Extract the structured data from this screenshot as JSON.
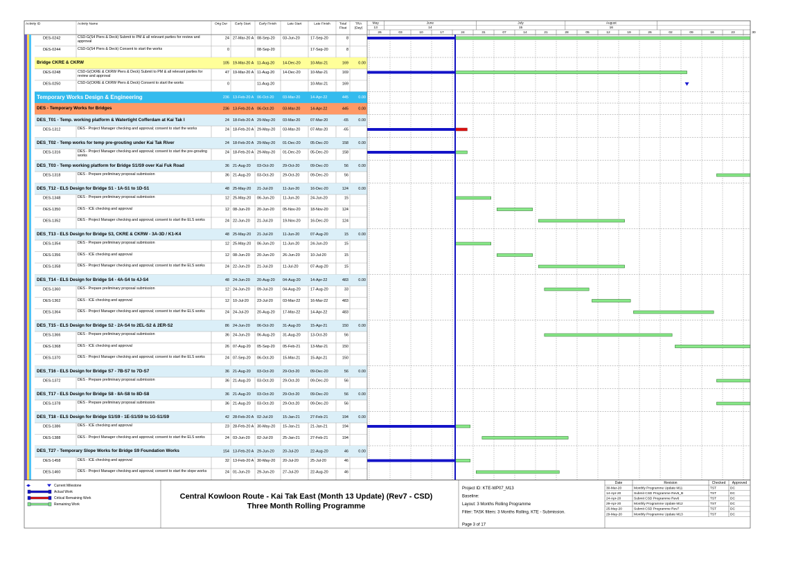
{
  "table": {
    "headers": {
      "id": "Activity ID",
      "name": "Activity Name",
      "dur": "Orig Dur",
      "es": "Early Start",
      "ef": "Early Finish",
      "ls": "Late Start",
      "lf": "Late Finish",
      "tf": [
        "Total",
        "Float"
      ],
      "tra": [
        "TRA",
        "(Day)"
      ]
    },
    "timeline": {
      "months": [
        "May",
        "June",
        "July",
        "August"
      ],
      "numbers": [
        "13",
        "14",
        "15",
        "16"
      ],
      "weeks": [
        "26",
        "03",
        "10",
        "17",
        "24",
        "31",
        "07",
        "14",
        "21",
        "28",
        "05",
        "12",
        "19",
        "26",
        "02",
        "09",
        "16",
        "23",
        "30"
      ]
    },
    "rows": [
      {
        "id": "DES-0242",
        "name": "CSD-G(S4 Piers & Deck) Submit to PM & all relevant parties for review and approval",
        "dur": 24,
        "es": "27-Mar-20 A",
        "ef": "08-Sep-20",
        "ls": "03-Jun-20",
        "lf": "17-Sep-20",
        "tf": 8
      },
      {
        "id": "DES-0244",
        "name": "CSD-G(S4 Piers & Deck) Consent to start the works",
        "dur": 0,
        "ef": "08-Sep-20",
        "lf": "17-Sep-20",
        "tf": 8
      },
      {
        "name": "Bridge CKRE & CKRW",
        "color": "#ffff99",
        "dur": 105,
        "es": "19-Mar-20 A",
        "ef": "11-Aug-20",
        "ls": "14-Dec-20",
        "lf": "10-Mar-21",
        "tf": 169,
        "tra": "0.00"
      },
      {
        "id": "DES-0248",
        "name": "CSD-G(CKRE & CKRW Piers & Deck) Submit to PM & all relevant parties for review and approval",
        "dur": 47,
        "es": "19-Mar-20 A",
        "ef": "11-Aug-20",
        "ls": "14-Dec-20",
        "lf": "10-Mar-21",
        "tf": 169
      },
      {
        "id": "DES-0250",
        "name": "CSD-G(CKRE & CKRW Piers & Deck) Consent to start the works",
        "dur": 0,
        "ef": "11-Aug-20",
        "lf": "10-Mar-21",
        "tf": 169
      },
      {
        "name": "Temporary Works Design & Engineering",
        "color": "#33bbee",
        "dur": 236,
        "es": "13-Feb-20 A",
        "ef": "06-Oct-20",
        "ls": "03-Mar-20",
        "lf": "14-Apr-22",
        "tf": 445,
        "tra": "0.00"
      },
      {
        "name": "DES - Temporary Works for Bridges",
        "color": "#ff9966",
        "dur": 236,
        "es": "13-Feb-20 A",
        "ef": "06-Oct-20",
        "ls": "03-Mar-20",
        "lf": "14-Apr-22",
        "tf": 445,
        "tra": "0.00"
      },
      {
        "name": "DES_T01 - Temp. working platform & Watertight Cofferdam at Kai Tak I",
        "color": "#dbeff8",
        "dur": 24,
        "es": "18-Feb-20 A",
        "ef": "29-May-20",
        "ls": "03-Mar-20",
        "lf": "07-Mar-20",
        "tf": -65,
        "tra": "0.00"
      },
      {
        "id": "DES-1312",
        "name": "DES - Project Manager checking and approval; consent to start the works",
        "dur": 24,
        "es": "18-Feb-20 A",
        "ef": "29-May-20",
        "ls": "03-Mar-20",
        "lf": "07-Mar-20",
        "tf": -65
      },
      {
        "name": "DES_T02 - Temp works for temp pre-grouting under Kai Tak River",
        "color": "#dbeff8",
        "dur": 24,
        "es": "18-Feb-20 A",
        "ef": "29-May-20",
        "ls": "01-Dec-20",
        "lf": "05-Dec-20",
        "tf": 158,
        "tra": "0.00"
      },
      {
        "id": "DES-1316",
        "name": "DES - Project Manager checking and approval; consent to start the pre-grouting works",
        "dur": 24,
        "es": "18-Feb-20 A",
        "ef": "29-May-20",
        "ls": "01-Dec-20",
        "lf": "05-Dec-20",
        "tf": 158
      },
      {
        "name": "DES_T03 - Temp working platform for Bridge S1/S9 over Kai Fuk Road",
        "color": "#dbeff8",
        "dur": 36,
        "es": "21-Aug-20",
        "ef": "03-Oct-20",
        "ls": "29-Oct-20",
        "lf": "09-Dec-20",
        "tf": 56,
        "tra": "0.00"
      },
      {
        "id": "DES-1318",
        "name": "DES - Prepare preliminary proposal submission",
        "dur": 36,
        "es": "21-Aug-20",
        "ef": "03-Oct-20",
        "ls": "29-Oct-20",
        "lf": "09-Dec-20",
        "tf": 56
      },
      {
        "name": "DES_T12 - ELS Design for Bridge S1 - 1A-S1 to 1D-S1",
        "color": "#dbeff8",
        "dur": 48,
        "es": "25-May-20",
        "ef": "21-Jul-20",
        "ls": "11-Jun-20",
        "lf": "16-Dec-20",
        "tf": 124,
        "tra": "0.00"
      },
      {
        "id": "DES-1348",
        "name": "DES - Prepare preliminary proposal submission",
        "dur": 12,
        "es": "25-May-20",
        "ef": "06-Jun-20",
        "ls": "11-Jun-20",
        "lf": "24-Jun-20",
        "tf": 15
      },
      {
        "id": "DES-1350",
        "name": "DES - ICE checking and approval",
        "dur": 12,
        "es": "08-Jun-20",
        "ef": "20-Jun-20",
        "ls": "05-Nov-20",
        "lf": "18-Nov-20",
        "tf": 124
      },
      {
        "id": "DES-1352",
        "name": "DES - Project Manager checking and approval; consent to start the ELS works",
        "dur": 24,
        "es": "22-Jun-20",
        "ef": "21-Jul-20",
        "ls": "19-Nov-20",
        "lf": "16-Dec-20",
        "tf": 124
      },
      {
        "name": "DES_T13 - ELS Design for Bridge S3, CKRE & CKRW - 3A-3D / K1-K4",
        "color": "#dbeff8",
        "dur": 48,
        "es": "25-May-20",
        "ef": "21-Jul-20",
        "ls": "11-Jun-20",
        "lf": "07-Aug-20",
        "tf": 15,
        "tra": "0.00"
      },
      {
        "id": "DES-1354",
        "name": "DES - Prepare preliminary proposal submission",
        "dur": 12,
        "es": "25-May-20",
        "ef": "06-Jun-20",
        "ls": "11-Jun-20",
        "lf": "24-Jun-20",
        "tf": 15
      },
      {
        "id": "DES-1356",
        "name": "DES - ICE checking and approval",
        "dur": 12,
        "es": "08-Jun-20",
        "ef": "20-Jun-20",
        "ls": "26-Jun-20",
        "lf": "10-Jul-20",
        "tf": 15
      },
      {
        "id": "DES-1358",
        "name": "DES - Project Manager checking and approval; consent to start the ELS works",
        "dur": 24,
        "es": "22-Jun-20",
        "ef": "21-Jul-20",
        "ls": "11-Jul-20",
        "lf": "07-Aug-20",
        "tf": 15
      },
      {
        "name": "DES_T14 - ELS Design for Bridge S4 - 4A-S4 to 4J-S4",
        "color": "#dbeff8",
        "dur": 48,
        "es": "24-Jun-20",
        "ef": "20-Aug-20",
        "ls": "04-Aug-20",
        "lf": "14-Apr-22",
        "tf": 483,
        "tra": "0.00"
      },
      {
        "id": "DES-1360",
        "name": "DES - Prepare preliminary proposal submission",
        "dur": 12,
        "es": "24-Jun-20",
        "ef": "09-Jul-20",
        "ls": "04-Aug-20",
        "lf": "17-Aug-20",
        "tf": 33
      },
      {
        "id": "DES-1362",
        "name": "DES - ICE checking and approval",
        "dur": 12,
        "es": "10-Jul-20",
        "ef": "23-Jul-20",
        "ls": "03-Mar-22",
        "lf": "16-Mar-22",
        "tf": 483
      },
      {
        "id": "DES-1364",
        "name": "DES - Project Manager checking and approval; consent to start the ELS works",
        "dur": 24,
        "es": "24-Jul-20",
        "ef": "20-Aug-20",
        "ls": "17-Mar-22",
        "lf": "14-Apr-22",
        "tf": 483
      },
      {
        "name": "DES_T15 - ELS Design for Bridge S2 - 2A-S4 to 2EL-S2 & 2ER-S2",
        "color": "#dbeff8",
        "dur": 86,
        "es": "24-Jun-20",
        "ef": "06-Oct-20",
        "ls": "31-Aug-20",
        "lf": "15-Apr-21",
        "tf": 150,
        "tra": "0.00"
      },
      {
        "id": "DES-1366",
        "name": "DES - Prepare preliminary proposal submission",
        "dur": 36,
        "es": "24-Jun-20",
        "ef": "06-Aug-20",
        "ls": "31-Aug-20",
        "lf": "13-Oct-20",
        "tf": 56
      },
      {
        "id": "DES-1368",
        "name": "DES - ICE checking and approval",
        "dur": 26,
        "es": "07-Aug-20",
        "ef": "05-Sep-20",
        "ls": "05-Feb-21",
        "lf": "13-Mar-21",
        "tf": 150
      },
      {
        "id": "DES-1370",
        "name": "DES - Project Manager checking and approval; consent to start the ELS works",
        "dur": 24,
        "es": "07-Sep-20",
        "ef": "06-Oct-20",
        "ls": "15-Mar-21",
        "lf": "15-Apr-21",
        "tf": 150
      },
      {
        "name": "DES_T16 - ELS Design for Bridge S7 - 7B-S7 to 7D-S7",
        "color": "#dbeff8",
        "dur": 36,
        "es": "21-Aug-20",
        "ef": "03-Oct-20",
        "ls": "29-Oct-20",
        "lf": "09-Dec-20",
        "tf": 56,
        "tra": "0.00"
      },
      {
        "id": "DES-1372",
        "name": "DES - Prepare preliminary proposal submission",
        "dur": 36,
        "es": "21-Aug-20",
        "ef": "03-Oct-20",
        "ls": "29-Oct-20",
        "lf": "09-Dec-20",
        "tf": 56
      },
      {
        "name": "DES_T17 - ELS Design for Bridge S8 - 8A-S8 to 8D-S8",
        "color": "#dbeff8",
        "dur": 36,
        "es": "21-Aug-20",
        "ef": "03-Oct-20",
        "ls": "29-Oct-20",
        "lf": "09-Dec-20",
        "tf": 56,
        "tra": "0.00"
      },
      {
        "id": "DES-1378",
        "name": "DES - Prepare preliminary proposal submission",
        "dur": 36,
        "es": "21-Aug-20",
        "ef": "03-Oct-20",
        "ls": "29-Oct-20",
        "lf": "09-Dec-20",
        "tf": 56
      },
      {
        "name": "DES_T18 - ELS Design for Bridge S1/S9 - 1E-S1/S9 to 1G-S1/S9",
        "color": "#dbeff8",
        "dur": 42,
        "es": "28-Feb-20 A",
        "ef": "02-Jul-20",
        "ls": "15-Jan-21",
        "lf": "27-Feb-21",
        "tf": 194,
        "tra": "0.00"
      },
      {
        "id": "DES-1386",
        "name": "DES - ICE checking and approval",
        "dur": 23,
        "es": "28-Feb-20 A",
        "ef": "30-May-20",
        "ls": "15-Jan-21",
        "lf": "21-Jan-21",
        "tf": 194
      },
      {
        "id": "DES-1388",
        "name": "DES - Project Manager checking and approval; consent to start the ELS works",
        "dur": 24,
        "es": "03-Jun-20",
        "ef": "02-Jul-20",
        "ls": "25-Jan-21",
        "lf": "27-Feb-21",
        "tf": 194
      },
      {
        "name": "DES_T27 - Temporary Slope Works for Bridge S9 Foundation Works",
        "color": "#dbeff8",
        "dur": 154,
        "es": "13-Feb-20 A",
        "ef": "29-Jun-20",
        "ls": "20-Jul-20",
        "lf": "22-Aug-20",
        "tf": 46,
        "tra": "0.00"
      },
      {
        "id": "DES-1458",
        "name": "DES - ICE checking and approval",
        "dur": 32,
        "es": "13-Feb-20 A",
        "ef": "30-May-20",
        "ls": "20-Jul-20",
        "lf": "25-Jul-20",
        "tf": 46
      },
      {
        "id": "DES-1460",
        "name": "DES - Project Manager checking and approval; consent to start the slope works",
        "dur": 24,
        "es": "01-Jun-20",
        "ef": "29-Jun-20",
        "ls": "27-Jul-20",
        "lf": "22-Aug-20",
        "tf": 46
      }
    ]
  },
  "legend": [
    "Current Milestone",
    "Actual Work",
    "Critical Remaining Work",
    "Remaining Work"
  ],
  "footer": {
    "title": "Central Kowloon Route - Kai Tak East (Month 13 Update) (Rev7 - CSD)",
    "subtitle": "Three Month Rolling Programme",
    "info": [
      "Project ID: KTE-WP07_M13",
      "Baseline:",
      "Layout: 3 Months Rolling Programme",
      "Filter: TASK filters: 3 Months Rolling, KTE - Submission."
    ],
    "page": "Page 3 of 17"
  },
  "revisions": {
    "headers": [
      "Date",
      "Revision",
      "Checked",
      "Approved"
    ],
    "rows": [
      [
        "30-Mar-20",
        "Monthly Programme Update M11",
        "TST",
        "DC"
      ],
      [
        "14-Apr-20",
        "Submit CSD Programme Rev5_B",
        "TST",
        "DC"
      ],
      [
        "24-Apr-20",
        "Submit CSD Programme Rev6",
        "TST",
        "DC"
      ],
      [
        "29-Apr-20",
        "Monthly Programme Update M12",
        "TST",
        "DC"
      ],
      [
        "25-May-20",
        "Submit CSD Programme Rev7",
        "TST",
        "DC"
      ],
      [
        "29-May-20",
        "Monthly Programme Update M13",
        "TST",
        "DC"
      ]
    ]
  }
}
